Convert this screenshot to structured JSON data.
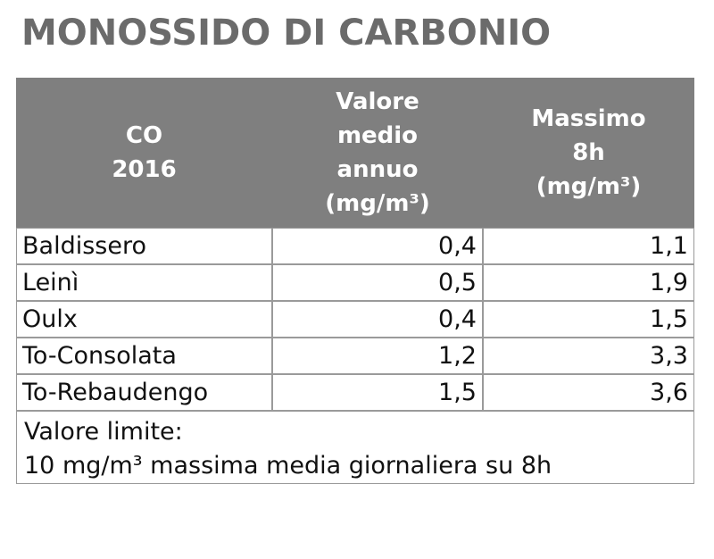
{
  "title": "MONOSSIDO DI CARBONIO",
  "table": {
    "header": [
      [
        "CO",
        "2016"
      ],
      [
        "Valore",
        "medio",
        "annuo",
        "(mg/m³)"
      ],
      [
        "Massimo",
        "8h",
        "(mg/m³)"
      ]
    ],
    "rows": [
      [
        "Baldissero",
        "0,4",
        "1,1"
      ],
      [
        "Leinì",
        "0,5",
        "1,9"
      ],
      [
        "Oulx",
        "0,4",
        "1,5"
      ],
      [
        "To-Consolata",
        "1,2",
        "3,3"
      ],
      [
        "To-Rebaudengo",
        "1,5",
        "3,6"
      ]
    ],
    "footer": [
      "Valore limite:",
      "10 mg/m³ massima media giornaliera su 8h"
    ]
  }
}
